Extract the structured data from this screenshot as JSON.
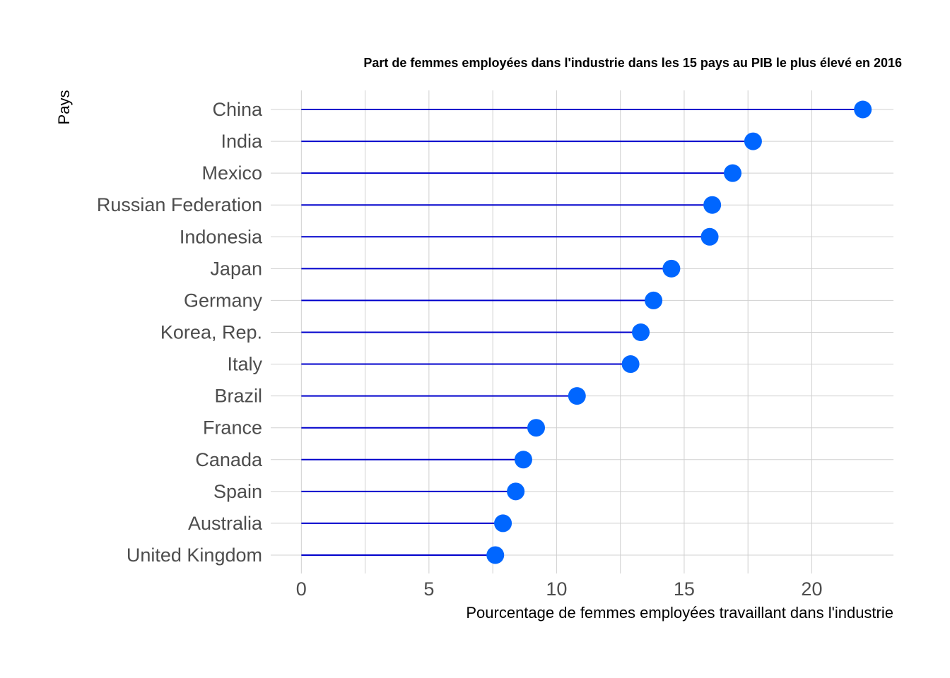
{
  "chart_data": {
    "type": "lollipop",
    "title": "Part de femmes employées dans l'industrie dans les 15 pays au PIB le plus élevé en 2016",
    "xlabel": "Pourcentage de femmes employées travaillant dans l'industrie",
    "ylabel": "Pays",
    "xlim": [
      -1.2,
      23.2
    ],
    "xticks": [
      "0",
      "5",
      "10",
      "15",
      "20"
    ],
    "grid": true,
    "categories": [
      "China",
      "India",
      "Mexico",
      "Russian Federation",
      "Indonesia",
      "Japan",
      "Germany",
      "Korea, Rep.",
      "Italy",
      "Brazil",
      "France",
      "Canada",
      "Spain",
      "Australia",
      "United Kingdom"
    ],
    "values": [
      22.0,
      17.7,
      16.9,
      16.1,
      16.0,
      14.5,
      13.8,
      13.3,
      12.9,
      10.8,
      9.2,
      8.7,
      8.4,
      7.9,
      7.6
    ],
    "colors": {
      "stem": "#0000cc",
      "dot": "#0066ff",
      "grid": "#d0d0d0"
    }
  }
}
